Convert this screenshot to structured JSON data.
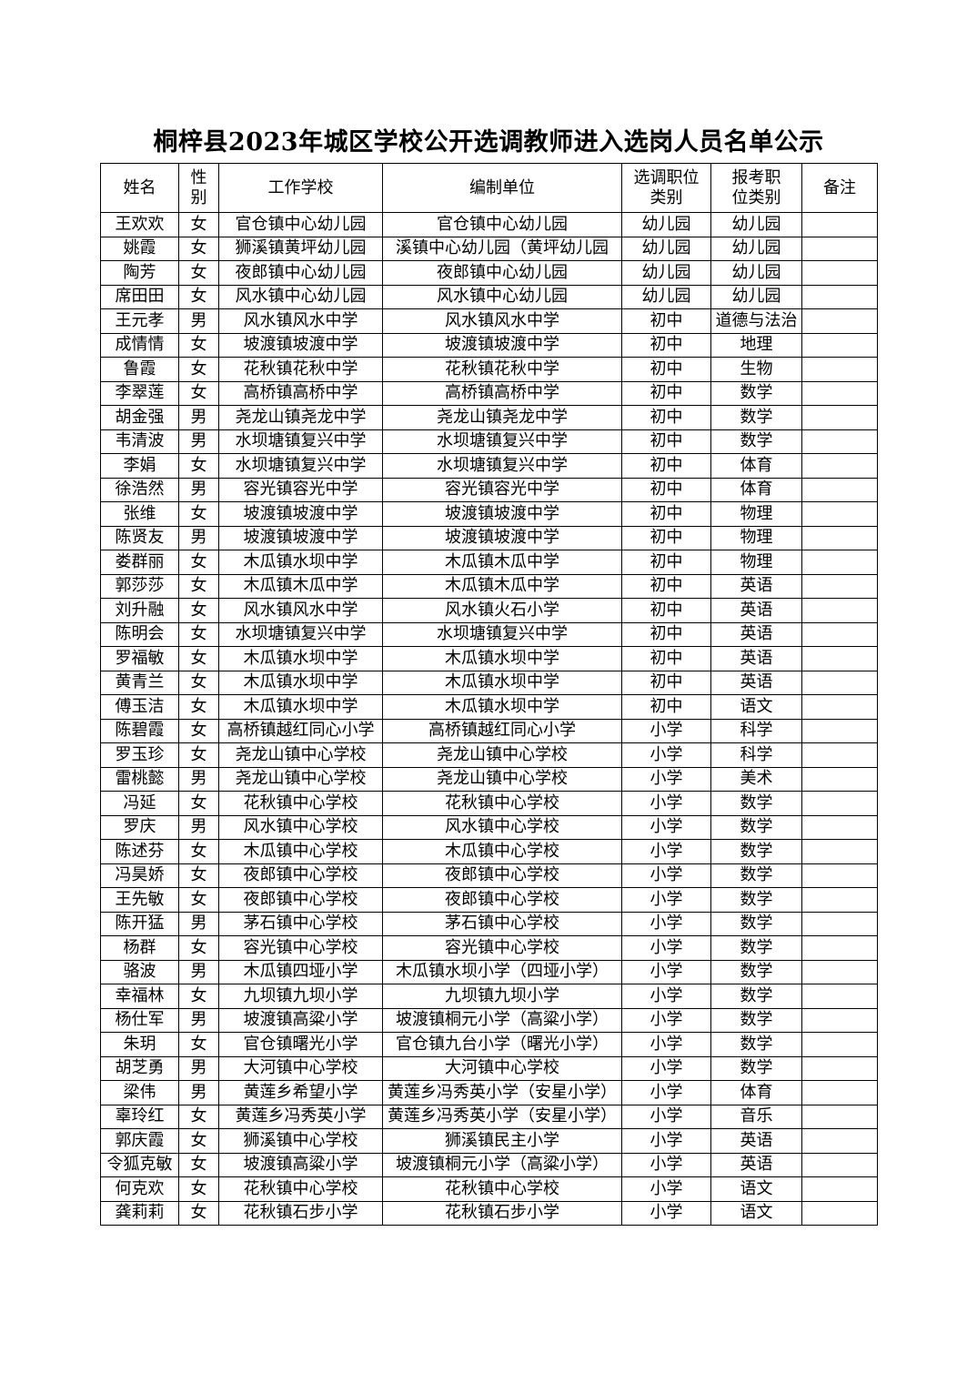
{
  "title": "桐梓县2023年城区学校公开选调教师进入选岗人员名单公示",
  "headers": [
    "姓名",
    "性别",
    "工作学校",
    "编制单位",
    "选调职位类别",
    "报考职位类别",
    "备注"
  ],
  "rows": [
    [
      "王欢欢",
      "女",
      "官仓镇中心幼儿园",
      "官仓镇中心幼儿园",
      "幼儿园",
      "幼儿园",
      ""
    ],
    [
      "姚霞",
      "女",
      "狮溪镇黄坪幼儿园",
      "溪镇中心幼儿园（黄坪幼儿园",
      "幼儿园",
      "幼儿园",
      ""
    ],
    [
      "陶芳",
      "女",
      "夜郎镇中心幼儿园",
      "夜郎镇中心幼儿园",
      "幼儿园",
      "幼儿园",
      ""
    ],
    [
      "席田田",
      "女",
      "风水镇中心幼儿园",
      "风水镇中心幼儿园",
      "幼儿园",
      "幼儿园",
      ""
    ],
    [
      "王元孝",
      "男",
      "风水镇风水中学",
      "风水镇风水中学",
      "初中",
      "道德与法治",
      ""
    ],
    [
      "成情情",
      "女",
      "坡渡镇坡渡中学",
      "坡渡镇坡渡中学",
      "初中",
      "地理",
      ""
    ],
    [
      "鲁霞",
      "女",
      "花秋镇花秋中学",
      "花秋镇花秋中学",
      "初中",
      "生物",
      ""
    ],
    [
      "李翠莲",
      "女",
      "高桥镇高桥中学",
      "高桥镇高桥中学",
      "初中",
      "数学",
      ""
    ],
    [
      "胡金强",
      "男",
      "尧龙山镇尧龙中学",
      "尧龙山镇尧龙中学",
      "初中",
      "数学",
      ""
    ],
    [
      "韦清波",
      "男",
      "水坝塘镇复兴中学",
      "水坝塘镇复兴中学",
      "初中",
      "数学",
      ""
    ],
    [
      "李娟",
      "女",
      "水坝塘镇复兴中学",
      "水坝塘镇复兴中学",
      "初中",
      "体育",
      ""
    ],
    [
      "徐浩然",
      "男",
      "容光镇容光中学",
      "容光镇容光中学",
      "初中",
      "体育",
      ""
    ],
    [
      "张维",
      "女",
      "坡渡镇坡渡中学",
      "坡渡镇坡渡中学",
      "初中",
      "物理",
      ""
    ],
    [
      "陈贤友",
      "男",
      "坡渡镇坡渡中学",
      "坡渡镇坡渡中学",
      "初中",
      "物理",
      ""
    ],
    [
      "娄群丽",
      "女",
      "木瓜镇水坝中学",
      "木瓜镇木瓜中学",
      "初中",
      "物理",
      ""
    ],
    [
      "郭莎莎",
      "女",
      "木瓜镇木瓜中学",
      "木瓜镇木瓜中学",
      "初中",
      "英语",
      ""
    ],
    [
      "刘升融",
      "女",
      "风水镇风水中学",
      "风水镇火石小学",
      "初中",
      "英语",
      ""
    ],
    [
      "陈明会",
      "女",
      "水坝塘镇复兴中学",
      "水坝塘镇复兴中学",
      "初中",
      "英语",
      ""
    ],
    [
      "罗福敏",
      "女",
      "木瓜镇水坝中学",
      "木瓜镇水坝中学",
      "初中",
      "英语",
      ""
    ],
    [
      "黄青兰",
      "女",
      "木瓜镇水坝中学",
      "木瓜镇水坝中学",
      "初中",
      "英语",
      ""
    ],
    [
      "傅玉洁",
      "女",
      "木瓜镇水坝中学",
      "木瓜镇水坝中学",
      "初中",
      "语文",
      ""
    ],
    [
      "陈碧霞",
      "女",
      "高桥镇越红同心小学",
      "高桥镇越红同心小学",
      "小学",
      "科学",
      ""
    ],
    [
      "罗玉珍",
      "女",
      "尧龙山镇中心学校",
      "尧龙山镇中心学校",
      "小学",
      "科学",
      ""
    ],
    [
      "雷桃懿",
      "男",
      "尧龙山镇中心学校",
      "尧龙山镇中心学校",
      "小学",
      "美术",
      ""
    ],
    [
      "冯延",
      "女",
      "花秋镇中心学校",
      "花秋镇中心学校",
      "小学",
      "数学",
      ""
    ],
    [
      "罗庆",
      "男",
      "风水镇中心学校",
      "风水镇中心学校",
      "小学",
      "数学",
      ""
    ],
    [
      "陈述芬",
      "女",
      "木瓜镇中心学校",
      "木瓜镇中心学校",
      "小学",
      "数学",
      ""
    ],
    [
      "冯昊娇",
      "女",
      "夜郎镇中心学校",
      "夜郎镇中心学校",
      "小学",
      "数学",
      ""
    ],
    [
      "王先敏",
      "女",
      "夜郎镇中心学校",
      "夜郎镇中心学校",
      "小学",
      "数学",
      ""
    ],
    [
      "陈开猛",
      "男",
      "茅石镇中心学校",
      "茅石镇中心学校",
      "小学",
      "数学",
      ""
    ],
    [
      "杨群",
      "女",
      "容光镇中心学校",
      "容光镇中心学校",
      "小学",
      "数学",
      ""
    ],
    [
      "骆波",
      "男",
      "木瓜镇四垭小学",
      "木瓜镇水坝小学（四垭小学）",
      "小学",
      "数学",
      ""
    ],
    [
      "幸福林",
      "女",
      "九坝镇九坝小学",
      "九坝镇九坝小学",
      "小学",
      "数学",
      ""
    ],
    [
      "杨仕军",
      "男",
      "坡渡镇高粱小学",
      "坡渡镇桐元小学（高粱小学）",
      "小学",
      "数学",
      ""
    ],
    [
      "朱玥",
      "女",
      "官仓镇曙光小学",
      "官仓镇九台小学（曙光小学）",
      "小学",
      "数学",
      ""
    ],
    [
      "胡芝勇",
      "男",
      "大河镇中心学校",
      "大河镇中心学校",
      "小学",
      "数学",
      ""
    ],
    [
      "梁伟",
      "男",
      "黄莲乡希望小学",
      "黄莲乡冯秀英小学（安星小学）",
      "小学",
      "体育",
      ""
    ],
    [
      "辜玲红",
      "女",
      "黄莲乡冯秀英小学",
      "黄莲乡冯秀英小学（安星小学）",
      "小学",
      "音乐",
      ""
    ],
    [
      "郭庆霞",
      "女",
      "狮溪镇中心学校",
      "狮溪镇民主小学",
      "小学",
      "英语",
      ""
    ],
    [
      "令狐克敏",
      "女",
      "坡渡镇高粱小学",
      "坡渡镇桐元小学（高粱小学）",
      "小学",
      "英语",
      ""
    ],
    [
      "何克欢",
      "女",
      "花秋镇中心学校",
      "花秋镇中心学校",
      "小学",
      "语文",
      ""
    ],
    [
      "龚莉莉",
      "女",
      "花秋镇石步小学",
      "花秋镇石步小学",
      "小学",
      "语文",
      ""
    ]
  ]
}
